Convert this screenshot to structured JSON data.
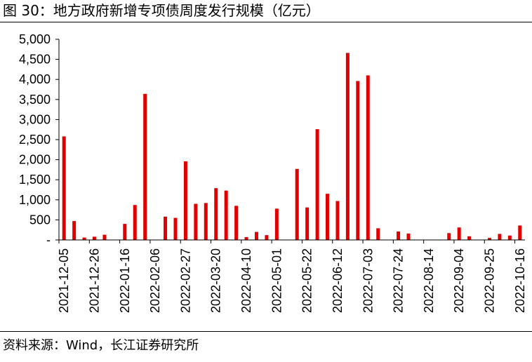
{
  "figure": {
    "title": "图 30：地方政府新增专项债周度发行规模（亿元）",
    "source": "资料来源：Wind，长江证券研究所"
  },
  "chart_data": {
    "type": "bar",
    "unit": "亿元",
    "series_color": "#e00000",
    "ylim": [
      0,
      5000
    ],
    "yticks": [
      0,
      500,
      1000,
      1500,
      2000,
      2500,
      3000,
      3500,
      4000,
      4500,
      5000
    ],
    "ytick_labels": [
      "-",
      "500",
      "1,000",
      "1,500",
      "2,000",
      "2,500",
      "3,000",
      "3,500",
      "4,000",
      "4,500",
      "5,000"
    ],
    "grid": false,
    "legend": "none",
    "xtick_labels": [
      "2021-12-05",
      "2021-12-26",
      "2022-01-16",
      "2022-02-06",
      "2022-02-27",
      "2022-03-20",
      "2022-04-10",
      "2022-05-01",
      "2022-05-22",
      "2022-06-12",
      "2022-07-03",
      "2022-07-24",
      "2022-08-14",
      "2022-09-04",
      "2022-09-25",
      "2022-10-16"
    ],
    "categories": [
      "2021-12-05",
      "2021-12-12",
      "2021-12-19",
      "2021-12-26",
      "2022-01-02",
      "2022-01-09",
      "2022-01-16",
      "2022-01-23",
      "2022-01-30",
      "2022-02-06",
      "2022-02-13",
      "2022-02-20",
      "2022-02-27",
      "2022-03-06",
      "2022-03-13",
      "2022-03-20",
      "2022-03-27",
      "2022-04-03",
      "2022-04-10",
      "2022-04-17",
      "2022-04-24",
      "2022-05-01",
      "2022-05-08",
      "2022-05-15",
      "2022-05-22",
      "2022-05-29",
      "2022-06-05",
      "2022-06-12",
      "2022-06-19",
      "2022-06-26",
      "2022-07-03",
      "2022-07-10",
      "2022-07-17",
      "2022-07-24",
      "2022-07-31",
      "2022-08-07",
      "2022-08-14",
      "2022-08-21",
      "2022-08-28",
      "2022-09-04",
      "2022-09-11",
      "2022-09-18",
      "2022-09-25",
      "2022-10-02",
      "2022-10-09",
      "2022-10-16"
    ],
    "values": [
      2580,
      470,
      60,
      80,
      130,
      0,
      400,
      870,
      3640,
      0,
      580,
      550,
      1960,
      900,
      920,
      1290,
      1230,
      850,
      70,
      200,
      120,
      780,
      0,
      1770,
      810,
      2760,
      1150,
      970,
      4660,
      3960,
      4100,
      290,
      0,
      210,
      160,
      0,
      0,
      0,
      170,
      310,
      90,
      0,
      50,
      150,
      110,
      360
    ]
  }
}
